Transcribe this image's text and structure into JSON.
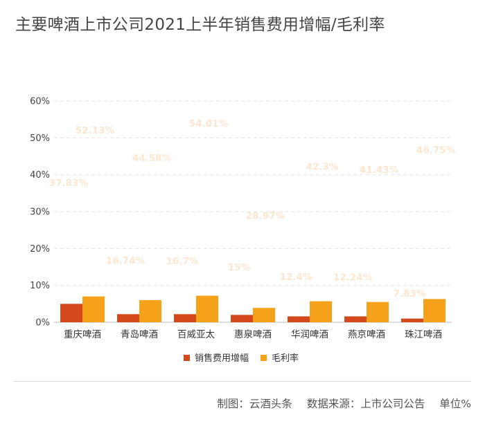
{
  "title": "主要啤酒上市公司2021上半年销售费用增幅/毛利率",
  "footer": {
    "maker": "制图：云酒头条",
    "source": "数据来源：上市公司公告",
    "unit": "单位%"
  },
  "colors": {
    "series1": "#d4491b",
    "series2": "#f5a11a",
    "gridline": "#e6e6e6",
    "annotation": "#fde6cf"
  },
  "chart_data": {
    "type": "bar",
    "title": "主要啤酒上市公司2021上半年销售费用增幅/毛利率",
    "categories": [
      "重庆啤酒",
      "青岛啤酒",
      "百威亚太",
      "惠泉啤酒",
      "华润啤酒",
      "燕京啤酒",
      "珠江啤酒"
    ],
    "series": [
      {
        "name": "销售费用增幅",
        "values": [
          5.0,
          2.2,
          2.2,
          2.0,
          1.6,
          1.6,
          1.0
        ]
      },
      {
        "name": "毛利率",
        "values": [
          7.0,
          6.0,
          7.2,
          3.9,
          5.7,
          5.5,
          6.3
        ]
      }
    ],
    "yticks": [
      "0%",
      "10%",
      "20%",
      "30%",
      "40%",
      "50%",
      "60%"
    ],
    "ylim": [
      0,
      60
    ],
    "annotations": [
      {
        "text": "52.13%",
        "value": 52.13,
        "category": 0,
        "slot": "right"
      },
      {
        "text": "37.83%",
        "value": 37.83,
        "category": 0,
        "slot": "left"
      },
      {
        "text": "44.58%",
        "value": 44.58,
        "category": 1,
        "slot": "right"
      },
      {
        "text": "16.74%",
        "value": 16.74,
        "category": 1,
        "slot": "left"
      },
      {
        "text": "54.01%",
        "value": 54.01,
        "category": 2,
        "slot": "right"
      },
      {
        "text": "16.7%",
        "value": 16.7,
        "category": 2,
        "slot": "left"
      },
      {
        "text": "28.97%",
        "value": 28.97,
        "category": 3,
        "slot": "right"
      },
      {
        "text": "15%",
        "value": 15,
        "category": 3,
        "slot": "left"
      },
      {
        "text": "42.3%",
        "value": 42.3,
        "category": 4,
        "slot": "right"
      },
      {
        "text": "12.4%",
        "value": 12.4,
        "category": 4,
        "slot": "left"
      },
      {
        "text": "41.43%",
        "value": 41.43,
        "category": 5,
        "slot": "right"
      },
      {
        "text": "12.24%",
        "value": 12.24,
        "category": 5,
        "slot": "left"
      },
      {
        "text": "46.75%",
        "value": 46.75,
        "category": 6,
        "slot": "right"
      },
      {
        "text": "7.83%",
        "value": 7.83,
        "category": 6,
        "slot": "left"
      }
    ],
    "legend": "bottom",
    "grid": true
  }
}
